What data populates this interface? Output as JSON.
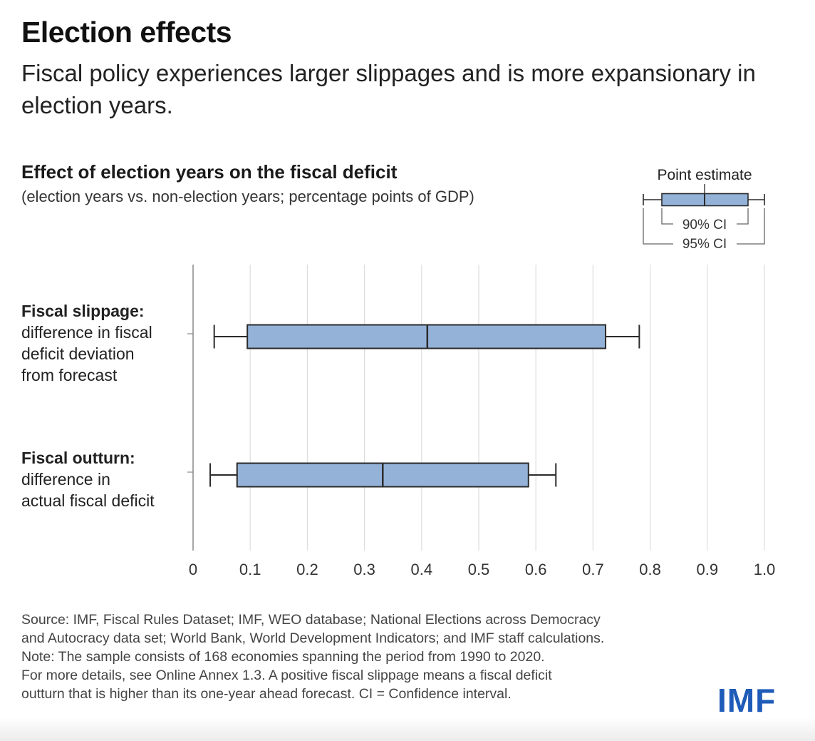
{
  "title": "Election effects",
  "subtitle": "Fiscal policy experiences larger slippages and is more expansionary in election years.",
  "chart_data": {
    "type": "box",
    "orientation": "horizontal",
    "title": "Effect of election years on the fiscal deficit",
    "subtitle": "(election years vs. non-election years; percentage points of GDP)",
    "xlim": [
      0,
      1.0
    ],
    "xticks": [
      "0",
      "0.1",
      "0.2",
      "0.3",
      "0.4",
      "0.5",
      "0.6",
      "0.7",
      "0.8",
      "0.9",
      "1.0"
    ],
    "grid": true,
    "categories": [
      {
        "label": "Fiscal slippage:",
        "description": [
          "difference in fiscal",
          "deficit deviation",
          "from forecast"
        ],
        "point_estimate": 0.41,
        "ci90": [
          0.095,
          0.722
        ],
        "ci95": [
          0.037,
          0.781
        ]
      },
      {
        "label": "Fiscal outturn:",
        "description": [
          "difference in",
          "actual fiscal deficit"
        ],
        "point_estimate": 0.332,
        "ci90": [
          0.077,
          0.587
        ],
        "ci95": [
          0.03,
          0.635
        ]
      }
    ],
    "legend": {
      "placement": "top-right",
      "point_estimate_label": "Point estimate",
      "ci90_label": "90% CI",
      "ci95_label": "95% CI"
    },
    "colors": {
      "box_fill": "#94b2d8",
      "box_stroke": "#2b2b2b",
      "grid": "#dddddd",
      "axis": "#888888"
    }
  },
  "notes": [
    "Source: IMF, Fiscal Rules Dataset; IMF, WEO database; National Elections across Democracy",
    "and Autocracy data set; World Bank, World Development Indicators; and IMF staff calculations.",
    "Note: The sample consists of 168 economies spanning the period from 1990 to 2020.",
    "For more details, see Online Annex 1.3. A positive fiscal slippage means a fiscal deficit",
    "outturn that is higher than its one-year ahead forecast. CI = Confidence interval."
  ],
  "logo": "IMF"
}
